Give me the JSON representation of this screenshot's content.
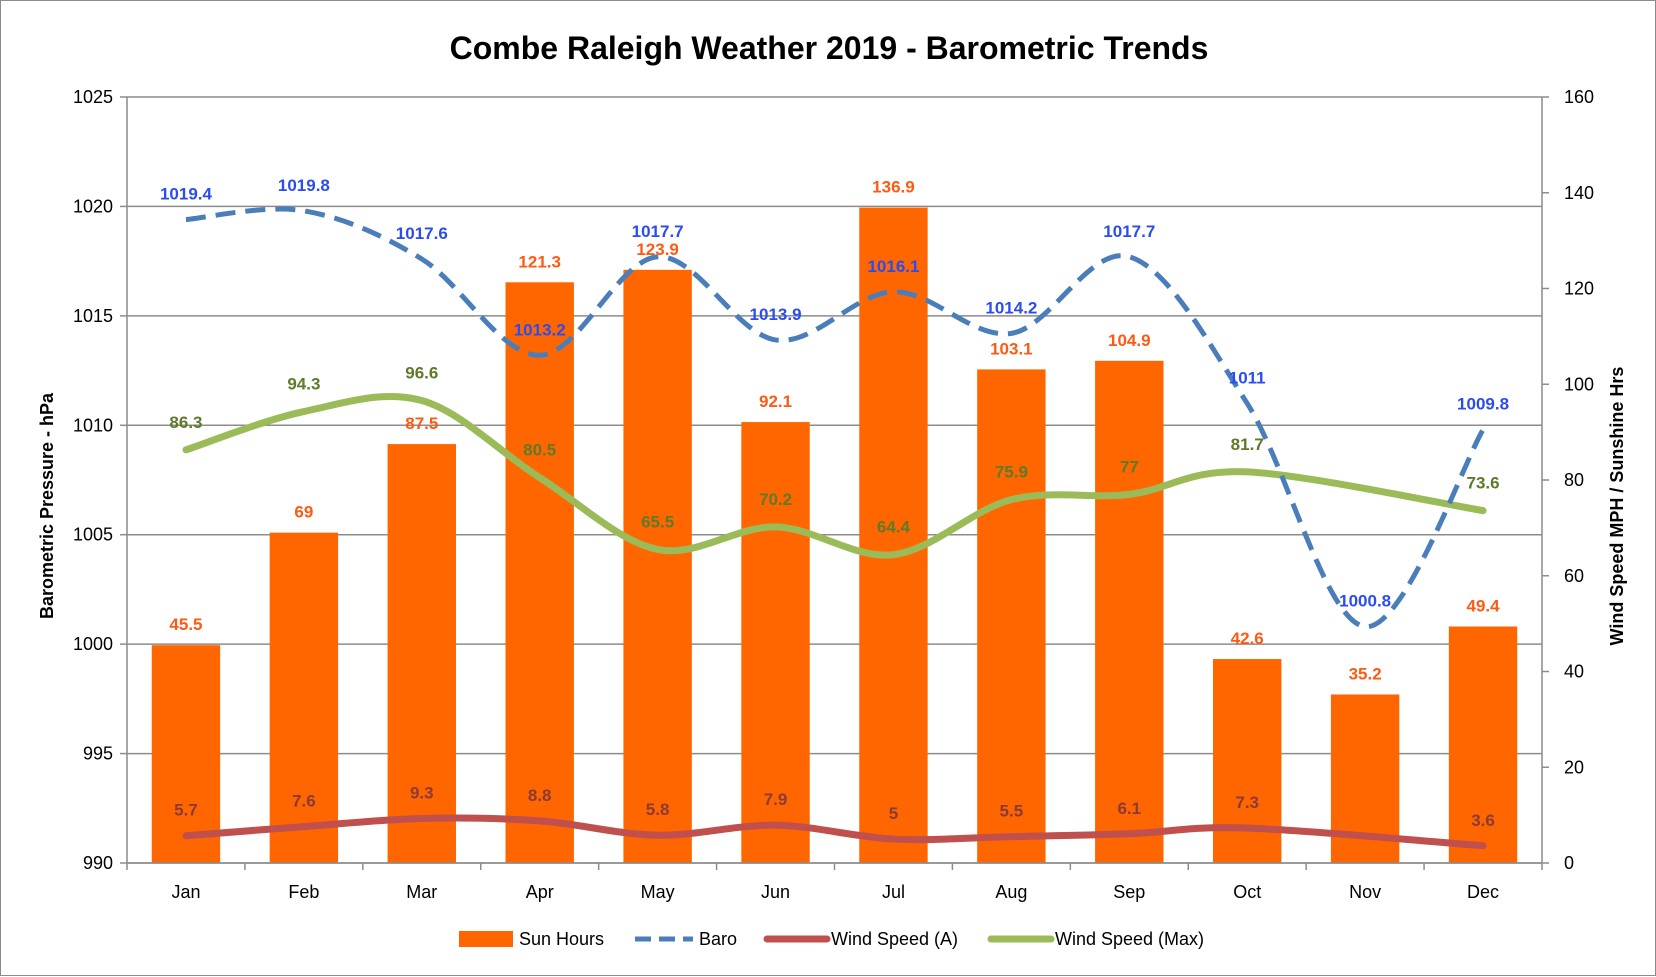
{
  "chart_data": {
    "type": "bar",
    "title": "Combe Raleigh Weather 2019 - Barometric Trends",
    "ylabel_left": "Barometric Pressure - hPa",
    "ylabel_right": "Wind Speed MPH / Sunshine Hrs",
    "categories": [
      "Jan",
      "Feb",
      "Mar",
      "Apr",
      "May",
      "Jun",
      "Jul",
      "Aug",
      "Sep",
      "Oct",
      "Nov",
      "Dec"
    ],
    "left_axis": {
      "min": 990,
      "max": 1025,
      "step": 5,
      "ticks": [
        "990",
        "995",
        "1000",
        "1005",
        "1010",
        "1015",
        "1020",
        "1025"
      ]
    },
    "right_axis": {
      "min": 0,
      "max": 160,
      "step": 20,
      "ticks": [
        "0",
        "20",
        "40",
        "60",
        "80",
        "100",
        "120",
        "140",
        "160"
      ]
    },
    "grid": true,
    "legend_position": "bottom",
    "series": [
      {
        "name": "Sun Hours",
        "type": "bar",
        "axis": "right",
        "color": "#ff6600",
        "label_color": "#ff5a14",
        "values": [
          45.5,
          69,
          87.5,
          121.3,
          123.9,
          92.1,
          136.9,
          103.1,
          104.9,
          42.6,
          35.2,
          49.4
        ],
        "labels": [
          "45.5",
          "69",
          "87.5",
          "121.3",
          "123.9",
          "92.1",
          "136.9",
          "103.1",
          "104.9",
          "42.6",
          "35.2",
          "49.4"
        ]
      },
      {
        "name": "Baro",
        "type": "line",
        "style": "dashed",
        "axis": "left",
        "color": "#4a7ebb",
        "label_color": "#2b4cf0",
        "values": [
          1019.4,
          1019.8,
          1017.6,
          1013.2,
          1017.7,
          1013.9,
          1016.1,
          1014.2,
          1017.7,
          1011,
          1000.8,
          1009.8
        ],
        "labels": [
          "1019.4",
          "1019.8",
          "1017.6",
          "1013.2",
          "1017.7",
          "1013.9",
          "1016.1",
          "1014.2",
          "1017.7",
          "1011",
          "1000.8",
          "1009.8"
        ]
      },
      {
        "name": "Wind Speed (A)",
        "type": "line",
        "axis": "right",
        "color": "#c0504d",
        "label_color": "#8b3a38",
        "values": [
          5.7,
          7.6,
          9.3,
          8.8,
          5.8,
          7.9,
          5,
          5.5,
          6.1,
          7.3,
          null,
          3.6
        ],
        "labels": [
          "5.7",
          "7.6",
          "9.3",
          "8.8",
          "5.8",
          "7.9",
          "5",
          "5.5",
          "6.1",
          "7.3",
          "",
          "3.6"
        ]
      },
      {
        "name": "Wind Speed (Max)",
        "type": "line",
        "axis": "right",
        "color": "#9bbb59",
        "label_color": "#5e7a2a",
        "values": [
          86.3,
          94.3,
          96.6,
          80.5,
          65.5,
          70.2,
          64.4,
          75.9,
          77,
          81.7,
          null,
          73.6
        ],
        "labels": [
          "86.3",
          "94.3",
          "96.6",
          "80.5",
          "65.5",
          "70.2",
          "64.4",
          "75.9",
          "77",
          "81.7",
          "",
          "73.6"
        ]
      }
    ]
  }
}
